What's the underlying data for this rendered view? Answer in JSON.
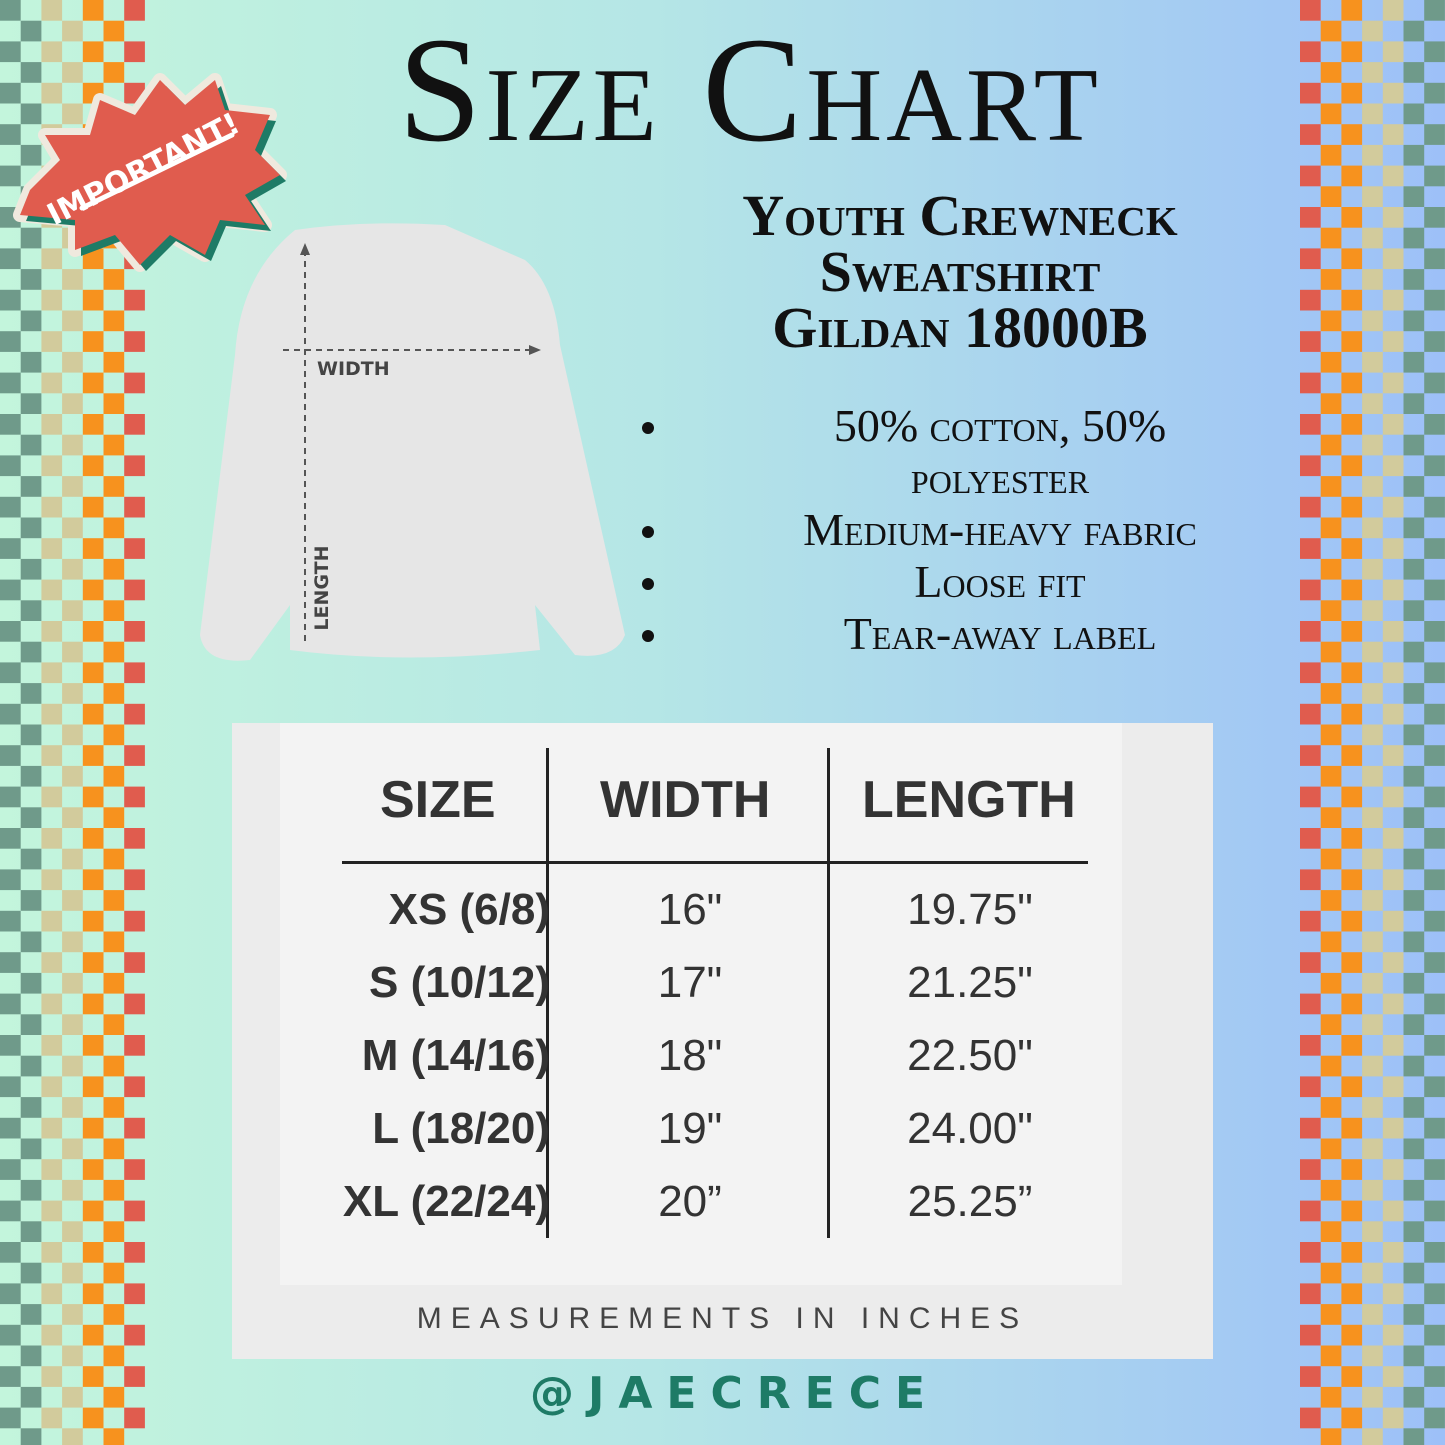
{
  "title": "Size Chart",
  "badge": {
    "text": "IMPORTANT!",
    "fill": "#e05c4e",
    "shadow": "#1e7b66"
  },
  "product": {
    "line1": "Youth Crewneck",
    "line2": "Sweatshirt",
    "line3": "Gildan 18000B"
  },
  "features": [
    "50% cotton, 50% polyester",
    "Medium-heavy fabric",
    "Loose fit",
    "Tear-away label"
  ],
  "diagram": {
    "width_label": "WIDTH",
    "length_label": "LENGTH"
  },
  "table": {
    "headers": [
      "SIZE",
      "WIDTH",
      "LENGTH"
    ],
    "rows": [
      [
        "XS (6/8)",
        "16\"",
        "19.75\""
      ],
      [
        "S (10/12)",
        "17\"",
        "21.25\""
      ],
      [
        "M (14/16)",
        "18\"",
        "22.50\""
      ],
      [
        "L (18/20)",
        "19\"",
        "24.00\""
      ],
      [
        "XL (22/24)",
        "20”",
        "25.25”"
      ]
    ],
    "footnote": "MEASUREMENTS IN INCHES"
  },
  "handle": "@JAECRECE",
  "colors": {
    "checker": [
      "#6f9a8a",
      "#d2cb9c",
      "#f7921e",
      "#e05c4e"
    ]
  }
}
